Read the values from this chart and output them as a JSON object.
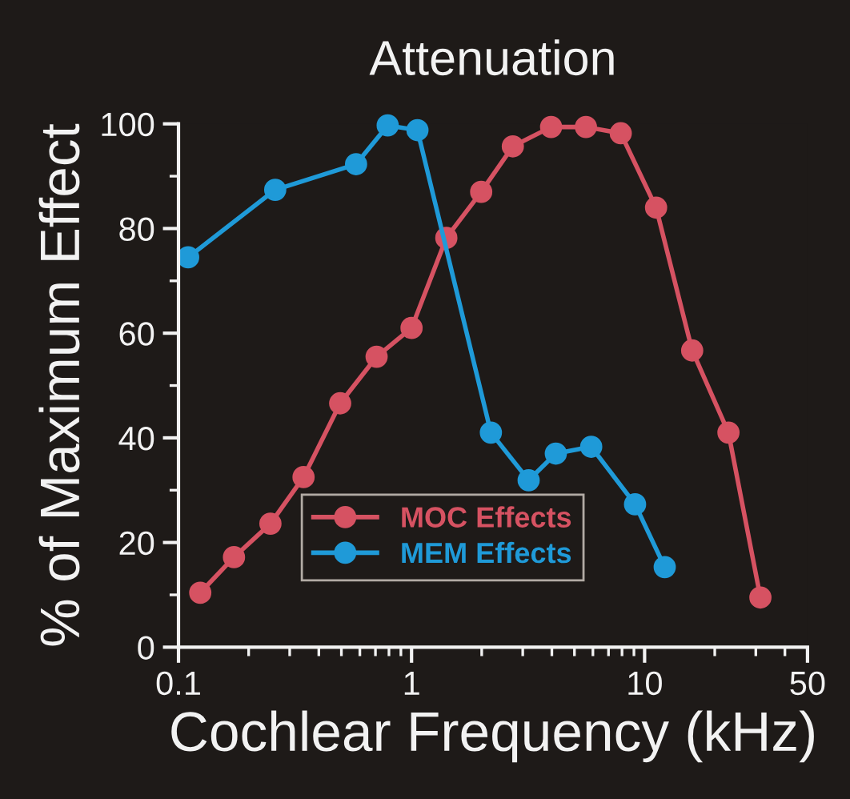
{
  "chart_data": {
    "type": "line",
    "title": "Attenuation",
    "xlabel": "Cochlear Frequency (kHz)",
    "ylabel": "% of Maximum Effect",
    "log": "x",
    "xlim": [
      0.1,
      50
    ],
    "xticks": [
      0.1,
      1,
      10,
      50
    ],
    "ylim": [
      0,
      100
    ],
    "yticks": [
      0,
      20,
      40,
      60,
      80,
      100
    ],
    "grid": false,
    "legend": "bottom",
    "marker": "circle",
    "line_style": "solid",
    "series": [
      {
        "name": "MOC Effects",
        "color": "#d65262",
        "x": [
          0.124,
          0.173,
          0.248,
          0.344,
          0.494,
          0.708,
          1.0,
          1.41,
          1.99,
          2.72,
          3.97,
          5.6,
          7.9,
          11.2,
          16,
          22.9,
          31.4
        ],
        "values": [
          10.4,
          17.2,
          23.6,
          32.5,
          46.6,
          55.5,
          61,
          78.2,
          87,
          95.7,
          99.4,
          99.4,
          98.2,
          84,
          56.7,
          41,
          9.5
        ]
      },
      {
        "name": "MEM Effects",
        "color": "#1f9ad8",
        "x": [
          0.11,
          0.26,
          0.578,
          0.79,
          1.06,
          2.19,
          3.18,
          4.16,
          5.9,
          9.1,
          12.2
        ],
        "values": [
          74.5,
          87.4,
          92.3,
          99.7,
          98.8,
          41,
          31.9,
          37,
          38.3,
          27.3,
          15.3
        ]
      }
    ]
  }
}
